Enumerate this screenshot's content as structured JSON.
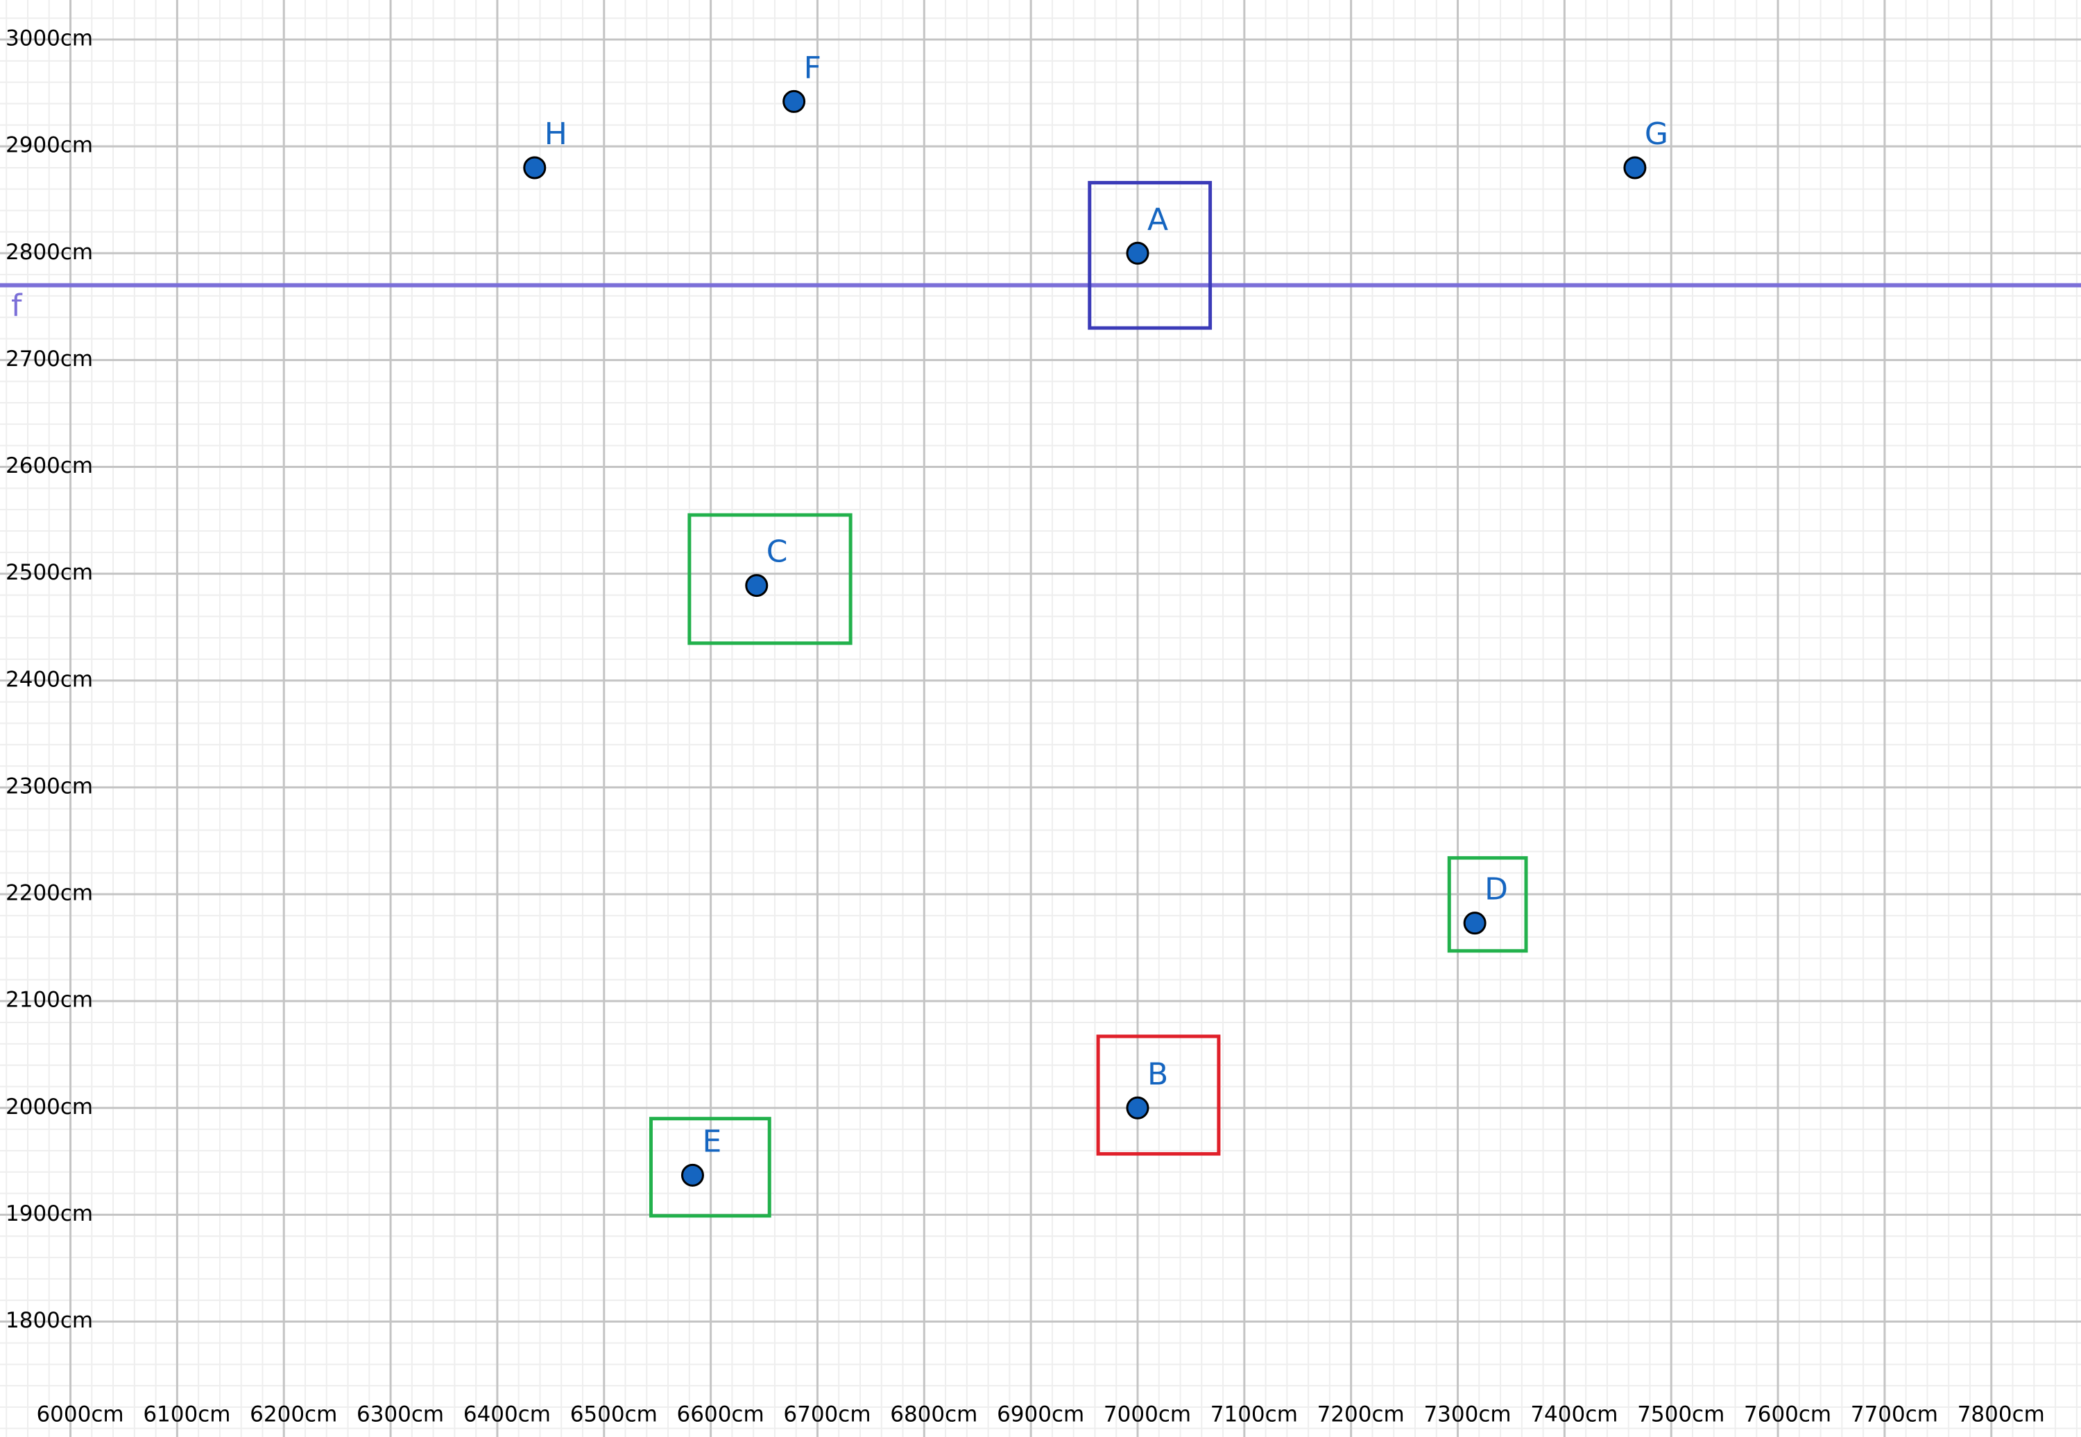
{
  "chart_data": {
    "type": "scatter",
    "xlim": [
      5934,
      7884
    ],
    "ylim": [
      1692,
      3037
    ],
    "xticks": [
      {
        "value": 6000,
        "label": "6000cm"
      },
      {
        "value": 6100,
        "label": "6100cm"
      },
      {
        "value": 6200,
        "label": "6200cm"
      },
      {
        "value": 6300,
        "label": "6300cm"
      },
      {
        "value": 6400,
        "label": "6400cm"
      },
      {
        "value": 6500,
        "label": "6500cm"
      },
      {
        "value": 6600,
        "label": "6600cm"
      },
      {
        "value": 6700,
        "label": "6700cm"
      },
      {
        "value": 6800,
        "label": "6800cm"
      },
      {
        "value": 6900,
        "label": "6900cm"
      },
      {
        "value": 7000,
        "label": "7000cm"
      },
      {
        "value": 7100,
        "label": "7100cm"
      },
      {
        "value": 7200,
        "label": "7200cm"
      },
      {
        "value": 7300,
        "label": "7300cm"
      },
      {
        "value": 7400,
        "label": "7400cm"
      },
      {
        "value": 7500,
        "label": "7500cm"
      },
      {
        "value": 7600,
        "label": "7600cm"
      },
      {
        "value": 7700,
        "label": "7700cm"
      },
      {
        "value": 7800,
        "label": "7800cm"
      }
    ],
    "yticks": [
      {
        "value": 1800,
        "label": "1800cm"
      },
      {
        "value": 1900,
        "label": "1900cm"
      },
      {
        "value": 2000,
        "label": "2000cm"
      },
      {
        "value": 2100,
        "label": "2100cm"
      },
      {
        "value": 2200,
        "label": "2200cm"
      },
      {
        "value": 2300,
        "label": "2300cm"
      },
      {
        "value": 2400,
        "label": "2400cm"
      },
      {
        "value": 2500,
        "label": "2500cm"
      },
      {
        "value": 2600,
        "label": "2600cm"
      },
      {
        "value": 2700,
        "label": "2700cm"
      },
      {
        "value": 2800,
        "label": "2800cm"
      },
      {
        "value": 2900,
        "label": "2900cm"
      },
      {
        "value": 3000,
        "label": "3000cm"
      }
    ],
    "grid": true,
    "minor_grid": true,
    "point_color": "#1565c0",
    "points": [
      {
        "name": "A",
        "x": 7000,
        "y": 2800
      },
      {
        "name": "B",
        "x": 7000,
        "y": 2000
      },
      {
        "name": "C",
        "x": 6643,
        "y": 2489
      },
      {
        "name": "D",
        "x": 7316,
        "y": 2173
      },
      {
        "name": "E",
        "x": 6583,
        "y": 1937
      },
      {
        "name": "F",
        "x": 6678,
        "y": 2942
      },
      {
        "name": "G",
        "x": 7466,
        "y": 2880
      },
      {
        "name": "H",
        "x": 6435,
        "y": 2880
      }
    ],
    "rectangles": [
      {
        "color": "#3b3bb8",
        "x": [
          6955,
          7068
        ],
        "y": [
          2730,
          2866
        ]
      },
      {
        "color": "#22b14c",
        "x": [
          6580,
          6731
        ],
        "y": [
          2435,
          2555
        ]
      },
      {
        "color": "#22b14c",
        "x": [
          7292,
          7364
        ],
        "y": [
          2147,
          2234
        ]
      },
      {
        "color": "#e0202a",
        "x": [
          6963,
          7076
        ],
        "y": [
          1957,
          2067
        ]
      },
      {
        "color": "#22b14c",
        "x": [
          6544,
          6655
        ],
        "y": [
          1899,
          1990
        ]
      }
    ],
    "line": {
      "name": "f",
      "y": 2770,
      "color": "#7b6fd8"
    }
  }
}
